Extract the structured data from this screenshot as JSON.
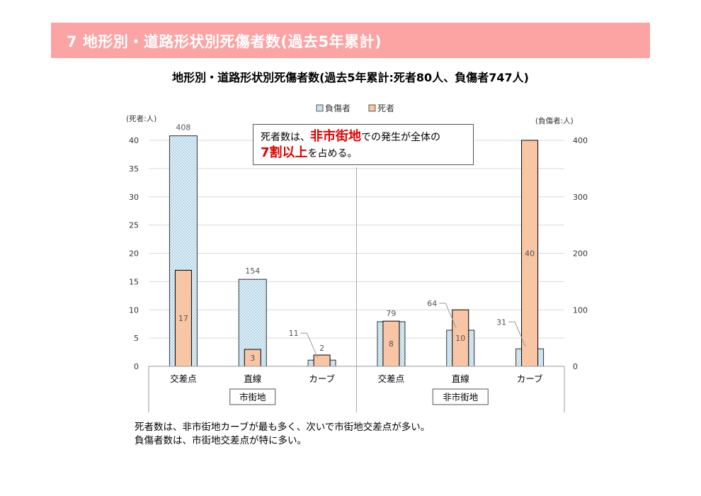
{
  "header": {
    "banner_title": "7 地形別・道路形状別死傷者数(過去5年累計)",
    "subtitle": "地形別・道路形状別死傷者数(過去5年累計:死者80人、負傷者747人)"
  },
  "callout": {
    "part1": "死者数は、",
    "highlight1": "非市街地",
    "part2": "での発生が全体の",
    "highlight2": "7割以上",
    "part3": "を占める。"
  },
  "footer": {
    "line1": "死者数は、非市街地カーブが最も多く、次いで市街地交差点が多い。",
    "line2": "負傷者数は、市街地交差点が特に多い。"
  },
  "colors": {
    "banner": "#fca3a3",
    "deaths_fill": "#f8c6a4",
    "deaths_stroke": "#c9895f",
    "injured_fill": "#dff1fa",
    "injured_dots": "#5a8fb0",
    "callout_highlight": "#e10000"
  },
  "chart_data": {
    "type": "bar",
    "categories": [
      "交差点",
      "直線",
      "カーブ",
      "交差点",
      "直線",
      "カーブ"
    ],
    "groups": [
      {
        "label": "市街地",
        "categories": [
          "交差点",
          "直線",
          "カーブ"
        ]
      },
      {
        "label": "非市街地",
        "categories": [
          "交差点",
          "直線",
          "カーブ"
        ]
      }
    ],
    "series": [
      {
        "name": "負傷者",
        "axis": "right",
        "values": [
          408,
          154,
          11,
          79,
          64,
          31
        ],
        "pattern": "dotted"
      },
      {
        "name": "死者",
        "axis": "left",
        "values": [
          17,
          3,
          2,
          8,
          10,
          40
        ]
      }
    ],
    "left_axis": {
      "label": "(死者:人)",
      "ylim": [
        0,
        40
      ],
      "ticks": [
        0,
        5,
        10,
        15,
        20,
        25,
        30,
        35,
        40
      ]
    },
    "right_axis": {
      "label": "(負傷者:人)",
      "ylim": [
        0,
        400
      ],
      "ticks": [
        0,
        100,
        200,
        300,
        400
      ]
    },
    "legend_position": "top-center",
    "grid": true
  }
}
